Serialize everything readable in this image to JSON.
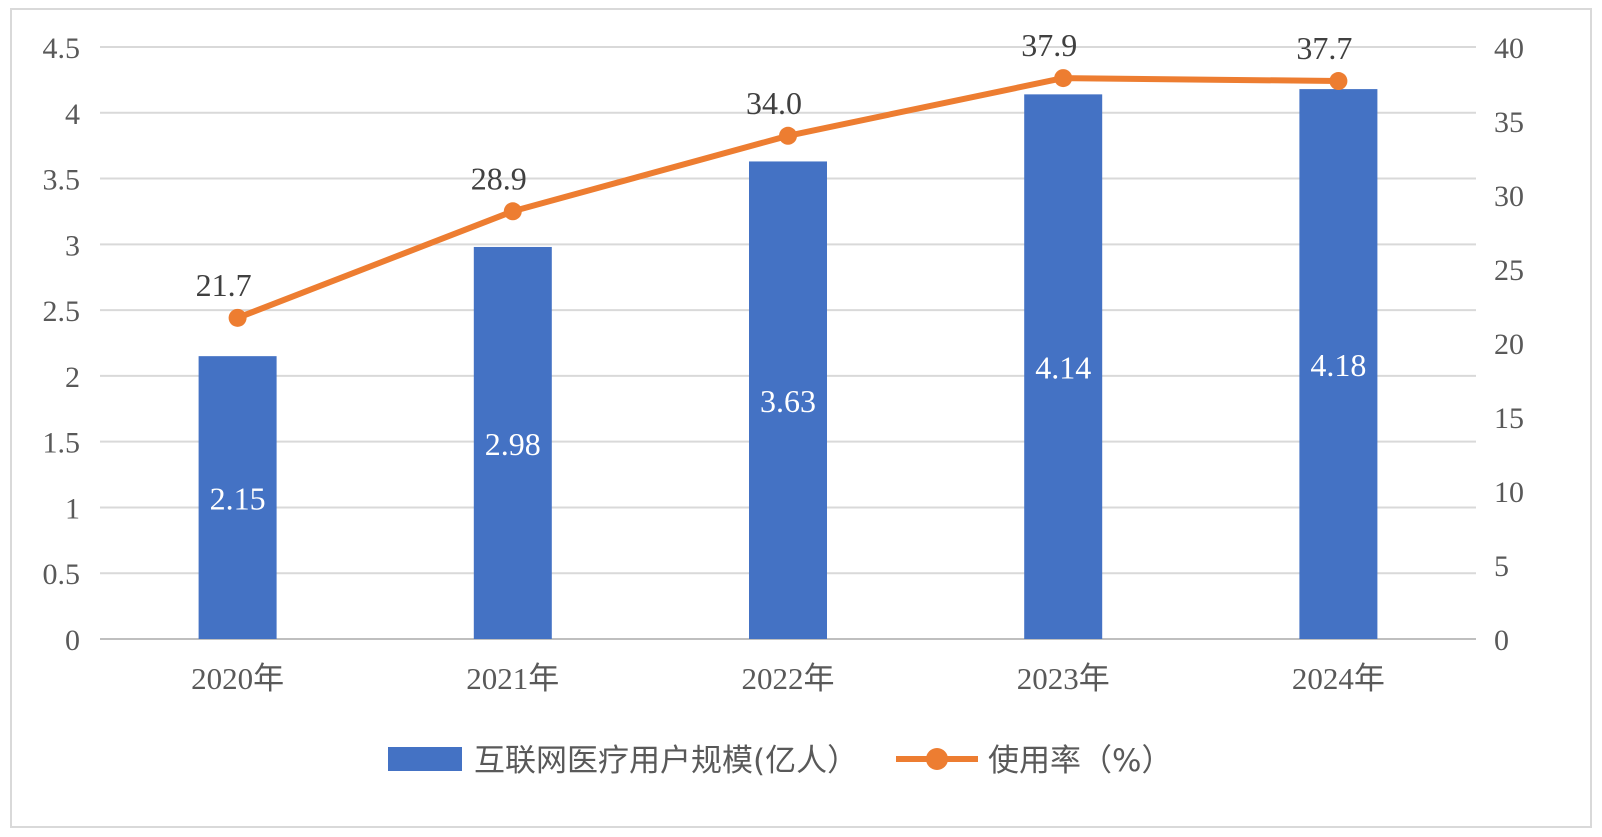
{
  "chart_data": {
    "type": "bar",
    "categories": [
      "2020年",
      "2021年",
      "2022年",
      "2023年",
      "2024年"
    ],
    "series": [
      {
        "name": "互联网医疗用户规模(亿人）",
        "type": "bar",
        "axis": "left",
        "color": "#4472C4",
        "values": [
          2.15,
          2.98,
          3.63,
          4.14,
          4.18
        ],
        "labels": [
          "2.15",
          "2.98",
          "3.63",
          "4.14",
          "4.18"
        ]
      },
      {
        "name": "使用率（%）",
        "type": "line",
        "axis": "right",
        "color": "#ED7D31",
        "values": [
          21.7,
          28.9,
          34.0,
          37.9,
          37.7
        ],
        "labels": [
          "21.7",
          "28.9",
          "34.0",
          "37.9",
          "37.7"
        ]
      }
    ],
    "y_left": {
      "ylim": [
        0,
        4.5
      ],
      "ticks": [
        "0",
        "0.5",
        "1",
        "1.5",
        "2",
        "2.5",
        "3",
        "3.5",
        "4",
        "4.5"
      ]
    },
    "y_right": {
      "ylim": [
        0,
        40
      ],
      "ticks": [
        "0",
        "5",
        "10",
        "15",
        "20",
        "25",
        "30",
        "35",
        "40"
      ]
    },
    "grid": true,
    "legend": "bottom"
  }
}
